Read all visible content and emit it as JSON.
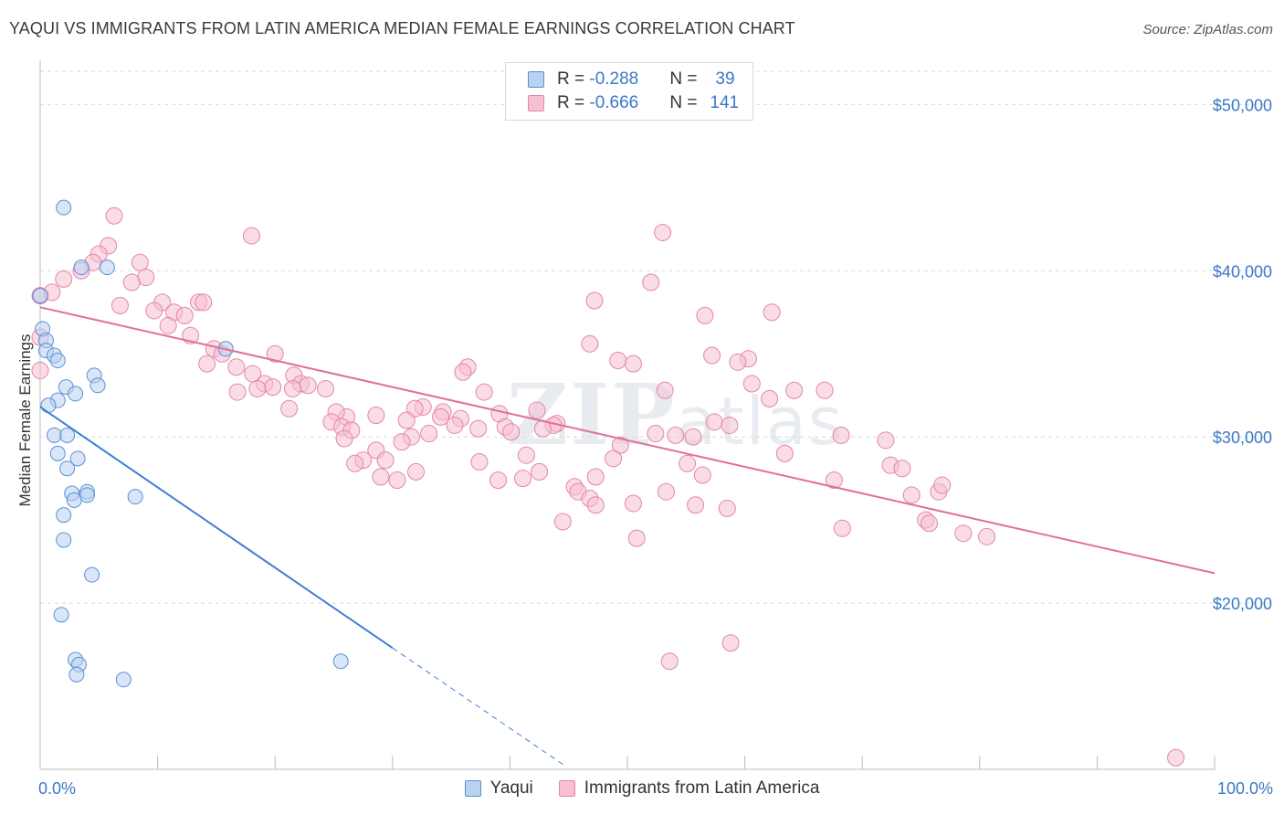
{
  "title": "YAQUI VS IMMIGRANTS FROM LATIN AMERICA MEDIAN FEMALE EARNINGS CORRELATION CHART",
  "source": "Source: ZipAtlas.com",
  "watermark": {
    "part1": "ZIP",
    "part2": "atlas"
  },
  "legend": {
    "rows": [
      {
        "r_label": "R = ",
        "r_value": "-0.288",
        "n_label": "N = ",
        "n_value": "39"
      },
      {
        "r_label": "R = ",
        "r_value": "-0.666",
        "n_label": "N = ",
        "n_value": "141"
      }
    ]
  },
  "bottom_legend": {
    "series1": "Yaqui",
    "series2": "Immigrants from Latin America"
  },
  "colors": {
    "yaqui_fill": "#b8d2f0",
    "yaqui_stroke": "#5b8fd6",
    "yaqui_line": "#3d7fd6",
    "latam_fill": "#f6c0d2",
    "latam_stroke": "#e486a6",
    "latam_line": "#e0709a",
    "tick_text": "#3b78c7",
    "grid": "#d9d9d9"
  },
  "chart_data": {
    "type": "scatter",
    "title": "YAQUI VS IMMIGRANTS FROM LATIN AMERICA MEDIAN FEMALE EARNINGS CORRELATION CHART",
    "xlabel": "",
    "ylabel": "Median Female Earnings",
    "xlim": [
      0,
      100
    ],
    "ylim": [
      10000,
      52000
    ],
    "x_tick_labels": [
      "0.0%",
      "100.0%"
    ],
    "y_ticks": [
      20000,
      30000,
      40000,
      50000
    ],
    "y_tick_labels": [
      "$20,000",
      "$30,000",
      "$40,000",
      "$50,000"
    ],
    "series": [
      {
        "name": "Yaqui",
        "trend": {
          "x0": 0,
          "y0": 31800,
          "x1": 30,
          "y1": 17300,
          "dash_to_x": 44.5,
          "dash_to_y": 10300
        },
        "points": [
          [
            2,
            43800
          ],
          [
            0,
            38500
          ],
          [
            3.5,
            40200
          ],
          [
            5.7,
            40200
          ],
          [
            0.2,
            36500
          ],
          [
            0.5,
            35800
          ],
          [
            0.5,
            35200
          ],
          [
            1.2,
            34900
          ],
          [
            1.5,
            34600
          ],
          [
            15.8,
            35300
          ],
          [
            4.6,
            33700
          ],
          [
            4.9,
            33100
          ],
          [
            2.2,
            33000
          ],
          [
            3,
            32600
          ],
          [
            1.5,
            32200
          ],
          [
            0.7,
            31900
          ],
          [
            1.2,
            30100
          ],
          [
            2.3,
            30100
          ],
          [
            3.2,
            28700
          ],
          [
            1.5,
            29000
          ],
          [
            2.3,
            28100
          ],
          [
            2.7,
            26600
          ],
          [
            2.9,
            26200
          ],
          [
            4,
            26700
          ],
          [
            4,
            26500
          ],
          [
            8.1,
            26400
          ],
          [
            2,
            25300
          ],
          [
            2,
            23800
          ],
          [
            4.4,
            21700
          ],
          [
            1.8,
            19300
          ],
          [
            3,
            16600
          ],
          [
            3.3,
            16300
          ],
          [
            3.1,
            15700
          ],
          [
            7.1,
            15400
          ],
          [
            25.6,
            16500
          ]
        ]
      },
      {
        "name": "Immigrants from Latin America",
        "trend": {
          "x0": 0,
          "y0": 37800,
          "x1": 100,
          "y1": 21800
        },
        "points": [
          [
            0,
            38500
          ],
          [
            0,
            36000
          ],
          [
            0,
            34000
          ],
          [
            6.3,
            43300
          ],
          [
            18,
            42100
          ],
          [
            53,
            42300
          ],
          [
            5.8,
            41500
          ],
          [
            5,
            41000
          ],
          [
            4.5,
            40500
          ],
          [
            8.5,
            40500
          ],
          [
            3.5,
            40000
          ],
          [
            2,
            39500
          ],
          [
            9,
            39600
          ],
          [
            7.8,
            39300
          ],
          [
            52,
            39300
          ],
          [
            1,
            38700
          ],
          [
            6.8,
            37900
          ],
          [
            10.4,
            38100
          ],
          [
            13.5,
            38100
          ],
          [
            13.9,
            38100
          ],
          [
            47.2,
            38200
          ],
          [
            9.7,
            37600
          ],
          [
            11.4,
            37500
          ],
          [
            12.3,
            37300
          ],
          [
            56.6,
            37300
          ],
          [
            62.3,
            37500
          ],
          [
            10.9,
            36700
          ],
          [
            12.8,
            36100
          ],
          [
            46.8,
            35600
          ],
          [
            14.8,
            35300
          ],
          [
            15.5,
            35000
          ],
          [
            20,
            35000
          ],
          [
            57.2,
            34900
          ],
          [
            60.3,
            34700
          ],
          [
            59.4,
            34500
          ],
          [
            49.2,
            34600
          ],
          [
            50.5,
            34400
          ],
          [
            14.2,
            34400
          ],
          [
            16.7,
            34200
          ],
          [
            36.4,
            34200
          ],
          [
            36,
            33900
          ],
          [
            18.1,
            33800
          ],
          [
            21.6,
            33700
          ],
          [
            22.2,
            33200
          ],
          [
            22.8,
            33100
          ],
          [
            19.1,
            33200
          ],
          [
            19.8,
            33000
          ],
          [
            18.5,
            32900
          ],
          [
            21.5,
            32900
          ],
          [
            24.3,
            32900
          ],
          [
            60.6,
            33200
          ],
          [
            64.2,
            32800
          ],
          [
            66.8,
            32800
          ],
          [
            53.2,
            32800
          ],
          [
            37.8,
            32700
          ],
          [
            16.8,
            32700
          ],
          [
            62.1,
            32300
          ],
          [
            42.3,
            31600
          ],
          [
            32.6,
            31800
          ],
          [
            34.3,
            31500
          ],
          [
            35.8,
            31100
          ],
          [
            39.1,
            31400
          ],
          [
            28.6,
            31300
          ],
          [
            26.1,
            31200
          ],
          [
            34.1,
            31200
          ],
          [
            31.9,
            31700
          ],
          [
            25.2,
            31500
          ],
          [
            21.2,
            31700
          ],
          [
            57.4,
            30900
          ],
          [
            58.7,
            30700
          ],
          [
            44,
            30800
          ],
          [
            43.7,
            30700
          ],
          [
            42.8,
            30500
          ],
          [
            39.6,
            30600
          ],
          [
            37.3,
            30500
          ],
          [
            35.3,
            30700
          ],
          [
            31.2,
            31000
          ],
          [
            33.1,
            30200
          ],
          [
            24.8,
            30900
          ],
          [
            25.7,
            30600
          ],
          [
            26.5,
            30400
          ],
          [
            25.9,
            29900
          ],
          [
            31.6,
            30000
          ],
          [
            30.8,
            29700
          ],
          [
            40.1,
            30300
          ],
          [
            52.4,
            30200
          ],
          [
            54.1,
            30100
          ],
          [
            55.6,
            30000
          ],
          [
            49.4,
            29500
          ],
          [
            63.4,
            29000
          ],
          [
            68.2,
            30100
          ],
          [
            72,
            29800
          ],
          [
            28.6,
            29200
          ],
          [
            27.5,
            28600
          ],
          [
            29.4,
            28600
          ],
          [
            26.8,
            28400
          ],
          [
            37.4,
            28500
          ],
          [
            41.4,
            28900
          ],
          [
            48.8,
            28700
          ],
          [
            55.1,
            28400
          ],
          [
            72.4,
            28300
          ],
          [
            73.4,
            28100
          ],
          [
            29,
            27600
          ],
          [
            30.4,
            27400
          ],
          [
            32,
            27900
          ],
          [
            39,
            27400
          ],
          [
            41.1,
            27500
          ],
          [
            42.5,
            27900
          ],
          [
            47.3,
            27600
          ],
          [
            56.4,
            27700
          ],
          [
            67.6,
            27400
          ],
          [
            45.5,
            27000
          ],
          [
            45.8,
            26700
          ],
          [
            46.8,
            26300
          ],
          [
            47.3,
            25900
          ],
          [
            50.5,
            26000
          ],
          [
            53.3,
            26700
          ],
          [
            55.8,
            25900
          ],
          [
            58.5,
            25700
          ],
          [
            74.2,
            26500
          ],
          [
            76.5,
            26700
          ],
          [
            76.8,
            27100
          ],
          [
            44.5,
            24900
          ],
          [
            75.4,
            25000
          ],
          [
            75.7,
            24800
          ],
          [
            68.3,
            24500
          ],
          [
            78.6,
            24200
          ],
          [
            80.6,
            24000
          ],
          [
            50.8,
            23900
          ],
          [
            53.6,
            16500
          ],
          [
            58.8,
            17600
          ],
          [
            96.7,
            10700
          ]
        ]
      }
    ]
  }
}
